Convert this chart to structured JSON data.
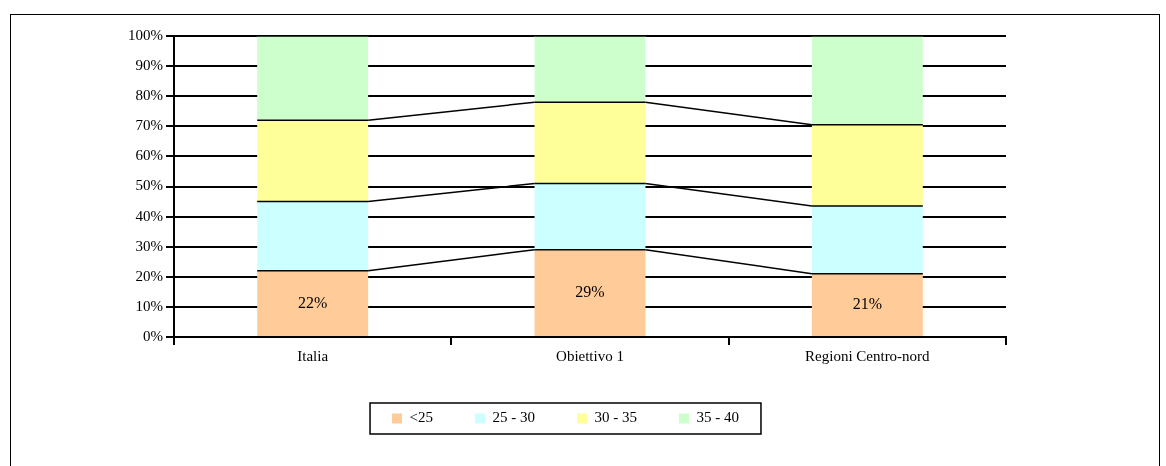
{
  "chart_data": {
    "type": "bar",
    "stacked": true,
    "categories": [
      "Italia",
      "Obiettivo 1",
      "Regioni Centro-nord"
    ],
    "series": [
      {
        "name": "<25",
        "color": "#ffcc99",
        "values": [
          22,
          29,
          21
        ],
        "value_labels": [
          "22%",
          "29%",
          "21%"
        ]
      },
      {
        "name": "25 - 30",
        "color": "#ccffff",
        "values": [
          23,
          22,
          22.5
        ]
      },
      {
        "name": "30 - 35",
        "color": "#ffff99",
        "values": [
          27,
          27,
          27
        ]
      },
      {
        "name": "35 - 40",
        "color": "#ccffcc",
        "values": [
          28,
          22,
          29.5
        ]
      }
    ],
    "ylim": [
      0,
      100
    ],
    "yticks": [
      {
        "value": 0,
        "label": "0%"
      },
      {
        "value": 10,
        "label": "10%"
      },
      {
        "value": 20,
        "label": "20%"
      },
      {
        "value": 30,
        "label": "30%"
      },
      {
        "value": 40,
        "label": "40%"
      },
      {
        "value": 50,
        "label": "50%"
      },
      {
        "value": 60,
        "label": "60%"
      },
      {
        "value": 70,
        "label": "70%"
      },
      {
        "value": 80,
        "label": "80%"
      },
      {
        "value": 90,
        "label": "90%"
      },
      {
        "value": 100,
        "label": "100%"
      }
    ],
    "grid": "y",
    "legend": "bottom"
  }
}
